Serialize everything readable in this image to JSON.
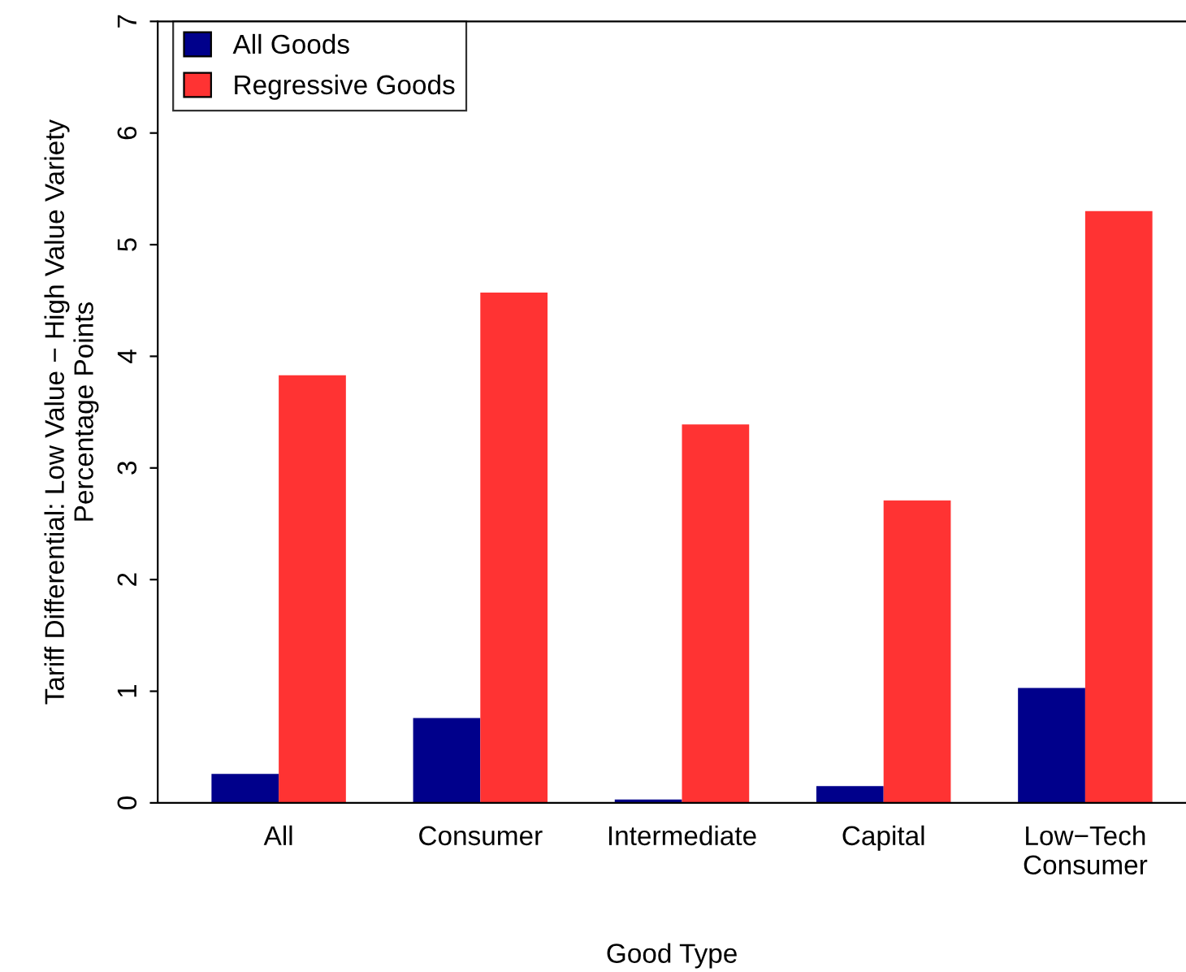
{
  "chart_data": {
    "type": "bar",
    "xlabel": "Good Type",
    "ylabel": "Tariff Differential: Low Value − High Value Variety\nPercentage Points",
    "categories": [
      "All",
      "Consumer",
      "Intermediate",
      "Capital",
      "Low−Tech\nConsumer"
    ],
    "series": [
      {
        "name": "All Goods",
        "color": "#00008b",
        "values": [
          0.26,
          0.76,
          0.03,
          0.15,
          1.03
        ]
      },
      {
        "name": "Regressive Goods",
        "color": "#ff3333",
        "values": [
          3.83,
          4.57,
          3.39,
          2.71,
          5.3
        ]
      }
    ],
    "ylim": [
      0,
      7
    ],
    "yticks": [
      0,
      1,
      2,
      3,
      4,
      5,
      6,
      7
    ],
    "grid": false,
    "legend": "top left"
  }
}
